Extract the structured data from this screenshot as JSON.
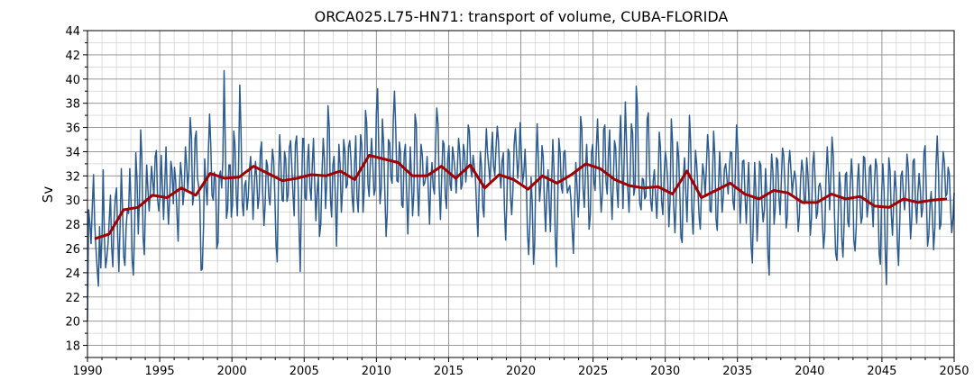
{
  "chart_data": {
    "type": "line",
    "title": "ORCA025.L75-HN71: transport of volume, CUBA-FLORIDA",
    "xlabel": "",
    "ylabel": "Sv",
    "xlim": [
      1990,
      2050
    ],
    "ylim": [
      17,
      44
    ],
    "x_ticks": [
      1990,
      1995,
      2000,
      2005,
      2010,
      2015,
      2020,
      2025,
      2030,
      2035,
      2040,
      2045,
      2050
    ],
    "y_ticks": [
      18,
      20,
      22,
      24,
      26,
      28,
      30,
      32,
      34,
      36,
      38,
      40,
      42,
      44
    ],
    "grid": "major and minor",
    "series": [
      {
        "name": "",
        "kind": "monthly",
        "color": "#2b5b8f",
        "values": [
          20.0,
          29.2,
          28.0,
          26.4,
          29.6,
          32.1,
          28.1,
          26.0,
          24.4,
          22.9,
          27.8,
          24.4,
          27.0,
          32.5,
          26.8,
          24.4,
          25.2,
          26.4,
          28.3,
          30.4,
          26.1,
          24.5,
          28.4,
          30.2,
          31.0,
          27.1,
          24.1,
          28.0,
          32.6,
          29.2,
          25.3,
          24.6,
          27.8,
          29.2,
          28.9,
          32.6,
          29.8,
          25.0,
          23.8,
          27.7,
          33.9,
          31.6,
          27.2,
          30.0,
          35.8,
          33.5,
          26.9,
          25.5,
          29.4,
          32.9,
          30.9,
          29.1,
          30.7,
          32.8,
          31.5,
          30.3,
          33.6,
          34.1,
          30.1,
          29.1,
          30.2,
          33.7,
          31.0,
          28.4,
          31.5,
          34.4,
          30.2,
          28.0,
          30.1,
          33.2,
          32.5,
          29.7,
          32.7,
          31.6,
          28.9,
          26.6,
          30.9,
          33.1,
          32.0,
          29.6,
          30.8,
          34.4,
          33.0,
          30.9,
          32.5,
          36.8,
          35.2,
          29.6,
          30.4,
          35.1,
          35.7,
          31.8,
          31.1,
          29.9,
          24.2,
          24.3,
          27.8,
          33.4,
          31.1,
          29.6,
          33.9,
          37.1,
          34.6,
          30.4,
          30.0,
          32.3,
          31.6,
          26.0,
          26.5,
          32.0,
          32.4,
          31.0,
          33.2,
          40.7,
          34.8,
          28.5,
          29.3,
          32.9,
          32.9,
          28.6,
          29.6,
          35.7,
          34.6,
          30.5,
          28.7,
          32.6,
          39.5,
          35.8,
          29.8,
          28.7,
          31.2,
          31.6,
          29.2,
          30.3,
          32.5,
          33.6,
          31.4,
          28.4,
          31.2,
          33.2,
          31.9,
          29.3,
          30.3,
          34.0,
          34.8,
          30.6,
          27.9,
          29.6,
          33.3,
          32.8,
          30.3,
          29.6,
          31.9,
          34.2,
          33.3,
          30.5,
          26.4,
          24.9,
          31.6,
          35.4,
          33.2,
          30.0,
          29.9,
          34.0,
          33.4,
          29.9,
          30.4,
          34.3,
          34.9,
          32.9,
          30.4,
          28.7,
          34.6,
          35.3,
          32.3,
          27.8,
          24.1,
          29.7,
          35.1,
          35.1,
          30.2,
          30.0,
          33.2,
          34.6,
          31.1,
          30.0,
          33.0,
          35.1,
          31.3,
          28.3,
          30.8,
          32.0,
          27.0,
          28.0,
          32.1,
          35.1,
          33.4,
          29.3,
          31.6,
          37.8,
          36.0,
          30.1,
          28.6,
          32.9,
          33.6,
          30.4,
          26.2,
          30.4,
          34.6,
          32.9,
          29.0,
          30.8,
          35.0,
          34.0,
          31.0,
          31.3,
          34.4,
          34.9,
          33.3,
          30.2,
          29.0,
          33.1,
          35.3,
          30.2,
          29.0,
          32.4,
          35.4,
          34.6,
          29.0,
          30.9,
          37.4,
          36.4,
          31.3,
          30.3,
          33.1,
          35.1,
          33.1,
          30.4,
          30.9,
          37.2,
          39.2,
          34.1,
          29.7,
          30.9,
          36.7,
          34.6,
          30.7,
          27.0,
          28.9,
          35.0,
          34.7,
          31.9,
          31.4,
          36.7,
          39.0,
          35.9,
          31.6,
          31.5,
          34.8,
          33.9,
          29.6,
          29.4,
          33.8,
          34.6,
          30.9,
          27.2,
          30.5,
          34.4,
          32.0,
          28.7,
          30.6,
          37.1,
          36.3,
          31.3,
          28.7,
          31.7,
          34.6,
          33.7,
          31.2,
          31.4,
          32.1,
          33.6,
          30.7,
          28.0,
          31.5,
          33.1,
          31.1,
          30.5,
          34.5,
          37.6,
          36.3,
          31.1,
          28.4,
          31.8,
          34.9,
          34.6,
          30.4,
          29.3,
          33.4,
          34.5,
          31.3,
          30.8,
          34.4,
          33.6,
          32.4,
          30.6,
          32.5,
          35.1,
          34.0,
          30.9,
          31.3,
          34.6,
          33.8,
          31.5,
          32.9,
          36.2,
          35.7,
          32.6,
          31.9,
          33.7,
          32.8,
          31.8,
          29.1,
          27.0,
          31.0,
          34.0,
          32.8,
          29.4,
          28.6,
          33.3,
          35.9,
          33.9,
          32.7,
          31.5,
          33.9,
          35.6,
          32.8,
          32.0,
          34.3,
          36.1,
          34.9,
          32.3,
          31.0,
          33.2,
          33.9,
          29.2,
          26.7,
          30.1,
          34.2,
          33.9,
          30.3,
          28.8,
          30.9,
          34.6,
          35.9,
          33.8,
          31.8,
          33.4,
          36.4,
          33.6,
          31.4,
          32.3,
          34.2,
          31.8,
          27.3,
          25.5,
          28.1,
          31.9,
          29.6,
          24.7,
          26.5,
          33.1,
          36.3,
          33.5,
          29.9,
          31.2,
          34.5,
          33.6,
          29.9,
          27.4,
          30.5,
          32.5,
          29.8,
          27.4,
          31.6,
          35.0,
          32.2,
          26.9,
          24.5,
          29.9,
          35.1,
          33.9,
          31.1,
          30.6,
          33.9,
          34.1,
          31.8,
          30.6,
          30.9,
          31.2,
          30.0,
          27.5,
          25.6,
          29.4,
          33.1,
          31.2,
          28.6,
          30.7,
          36.9,
          35.9,
          30.9,
          29.4,
          32.4,
          34.6,
          31.9,
          27.6,
          28.8,
          33.9,
          34.6,
          31.5,
          30.8,
          34.4,
          36.7,
          33.5,
          31.1,
          29.0,
          30.6,
          35.8,
          36.2,
          31.5,
          30.5,
          33.9,
          35.8,
          30.8,
          28.4,
          31.5,
          34.9,
          34.3,
          30.9,
          29.4,
          33.9,
          37.0,
          33.4,
          29.3,
          33.4,
          38.1,
          34.5,
          30.9,
          29.0,
          32.2,
          36.3,
          35.5,
          30.4,
          31.1,
          39.4,
          37.7,
          31.6,
          29.7,
          29.2,
          31.8,
          31.7,
          30.1,
          30.3,
          36.7,
          37.2,
          32.3,
          29.8,
          29.1,
          31.6,
          32.5,
          30.3,
          28.5,
          31.1,
          35.6,
          34.4,
          29.9,
          28.8,
          31.8,
          34.0,
          33.2,
          31.7,
          27.8,
          29.9,
          36.7,
          34.8,
          29.5,
          27.3,
          29.9,
          34.8,
          33.7,
          30.6,
          26.9,
          26.5,
          32.0,
          33.5,
          30.5,
          28.2,
          31.8,
          37.0,
          34.8,
          29.1,
          27.2,
          30.5,
          34.1,
          33.0,
          30.8,
          28.6,
          27.6,
          30.9,
          33.0,
          32.1,
          30.3,
          32.6,
          35.4,
          34.0,
          29.1,
          29.0,
          31.5,
          35.7,
          33.7,
          28.4,
          27.5,
          31.0,
          34.0,
          31.8,
          29.0,
          30.3,
          32.6,
          33.0,
          31.8,
          30.5,
          32.6,
          34.0,
          33.9,
          29.9,
          29.2,
          32.3,
          36.2,
          34.3,
          31.0,
          28.1,
          30.5,
          33.2,
          33.3,
          30.4,
          28.1,
          30.7,
          33.1,
          30.0,
          26.3,
          24.8,
          29.1,
          33.1,
          30.5,
          26.6,
          29.1,
          33.2,
          32.9,
          29.6,
          28.2,
          29.2,
          32.6,
          30.3,
          25.4,
          23.8,
          30.9,
          33.8,
          32.4,
          28.0,
          29.3,
          33.5,
          33.3,
          30.2,
          28.8,
          31.4,
          34.3,
          33.7,
          31.2,
          27.7,
          28.6,
          32.9,
          34.1,
          32.4,
          30.5,
          31.6,
          32.4,
          31.7,
          29.8,
          27.4,
          28.7,
          31.8,
          33.3,
          32.3,
          29.7,
          29.9,
          33.5,
          32.2,
          29.7,
          27.1,
          28.5,
          32.9,
          34.0,
          31.5,
          28.5,
          29.0,
          31.1,
          31.4,
          30.7,
          28.2,
          26.0,
          27.4,
          31.8,
          34.4,
          32.3,
          29.2,
          32.0,
          35.2,
          33.6,
          28.8,
          25.6,
          25.0,
          28.4,
          32.3,
          31.0,
          26.8,
          25.3,
          28.1,
          32.1,
          32.3,
          28.2,
          27.8,
          31.2,
          33.4,
          31.6,
          26.7,
          25.8,
          27.8,
          31.6,
          33.0,
          30.1,
          28.1,
          28.6,
          33.6,
          33.5,
          30.8,
          28.6,
          29.6,
          32.7,
          32.9,
          29.6,
          27.8,
          31.1,
          33.4,
          32.8,
          29.6,
          25.5,
          24.7,
          30.5,
          33.0,
          30.8,
          25.8,
          23.0,
          29.5,
          33.5,
          32.4,
          28.8,
          27.1,
          29.9,
          32.4,
          30.8,
          26.6,
          24.6,
          28.2,
          32.0,
          32.4,
          30.4,
          29.2,
          30.8,
          33.8,
          32.7,
          29.3,
          26.8,
          28.6,
          33.2,
          33.4,
          29.8,
          28.1,
          30.6,
          32.2,
          30.8,
          28.6,
          29.4,
          33.9,
          34.5,
          30.4,
          26.2,
          27.1,
          29.6,
          30.7,
          28.7,
          25.9,
          27.7,
          32.9,
          35.3,
          32.3,
          27.6,
          28.0,
          32.0,
          34.0,
          33.0,
          30.3,
          30.5,
          32.7,
          32.2,
          29.4,
          27.3,
          28.5,
          30.6
        ]
      },
      {
        "name": "",
        "kind": "annual mean",
        "color": "#a00000",
        "x": [
          1990.5,
          1991.5,
          1992.5,
          1993.5,
          1994.5,
          1995.5,
          1996.5,
          1997.5,
          1998.5,
          1999.5,
          2000.5,
          2001.5,
          2002.5,
          2003.5,
          2004.5,
          2005.5,
          2006.5,
          2007.5,
          2008.5,
          2009.5,
          2010.5,
          2011.5,
          2012.5,
          2013.5,
          2014.5,
          2015.5,
          2016.5,
          2017.5,
          2018.5,
          2019.5,
          2020.5,
          2021.5,
          2022.5,
          2023.5,
          2024.5,
          2025.5,
          2026.5,
          2027.5,
          2028.5,
          2029.5,
          2030.5,
          2031.5,
          2032.5,
          2033.5,
          2034.5,
          2035.5,
          2036.5,
          2037.5,
          2038.5,
          2039.5,
          2040.5,
          2041.5,
          2042.5,
          2043.5,
          2044.5,
          2045.5,
          2046.5,
          2047.5,
          2048.5,
          2049.5
        ],
        "values": [
          26.8,
          27.2,
          29.2,
          29.4,
          30.4,
          30.2,
          31.0,
          30.4,
          32.2,
          31.8,
          31.9,
          32.8,
          32.2,
          31.6,
          31.8,
          32.1,
          32.0,
          32.4,
          31.7,
          33.7,
          33.4,
          33.1,
          32.0,
          32.0,
          32.8,
          31.8,
          32.9,
          31.0,
          32.1,
          31.7,
          30.9,
          32.0,
          31.4,
          32.1,
          33.0,
          32.6,
          31.7,
          31.2,
          31.0,
          31.1,
          30.5,
          32.4,
          30.2,
          30.8,
          31.4,
          30.5,
          30.1,
          30.8,
          30.6,
          29.8,
          29.8,
          30.5,
          30.1,
          30.3,
          29.5,
          29.4,
          30.1,
          29.8,
          30.0,
          30.1
        ]
      }
    ]
  }
}
